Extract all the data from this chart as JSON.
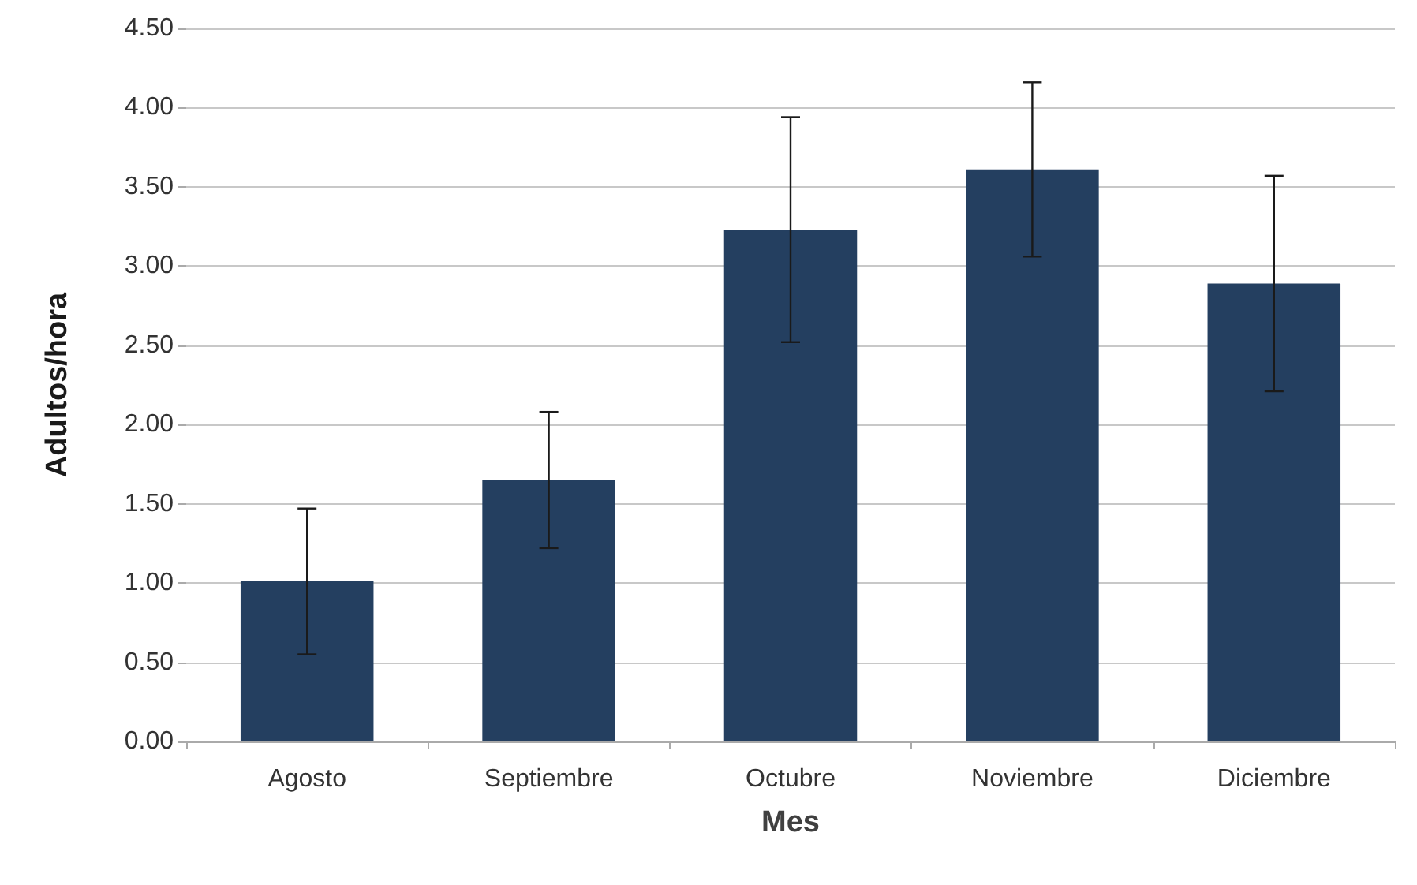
{
  "chart_data": {
    "type": "bar",
    "xlabel": "Mes",
    "ylabel": "Adultos/hora",
    "categories": [
      "Agosto",
      "Septiembre",
      "Octubre",
      "Noviembre",
      "Diciembre"
    ],
    "values": [
      1.01,
      1.65,
      3.23,
      3.61,
      2.89
    ],
    "errors": [
      0.46,
      0.43,
      0.71,
      0.55,
      0.68
    ],
    "color": "#243f60",
    "ylim": [
      0,
      4.5
    ],
    "yticks": [
      {
        "value": 0,
        "label": "0.00"
      },
      {
        "value": 0.5,
        "label": "0.50"
      },
      {
        "value": 1,
        "label": "1.00"
      },
      {
        "value": 1.5,
        "label": "1.50"
      },
      {
        "value": 2,
        "label": "2.00"
      },
      {
        "value": 2.5,
        "label": "2.50"
      },
      {
        "value": 3,
        "label": "3.00"
      },
      {
        "value": 3.5,
        "label": "3.50"
      },
      {
        "value": 4,
        "label": "4.00"
      },
      {
        "value": 4.5,
        "label": "4.50"
      }
    ],
    "grid": "y"
  }
}
